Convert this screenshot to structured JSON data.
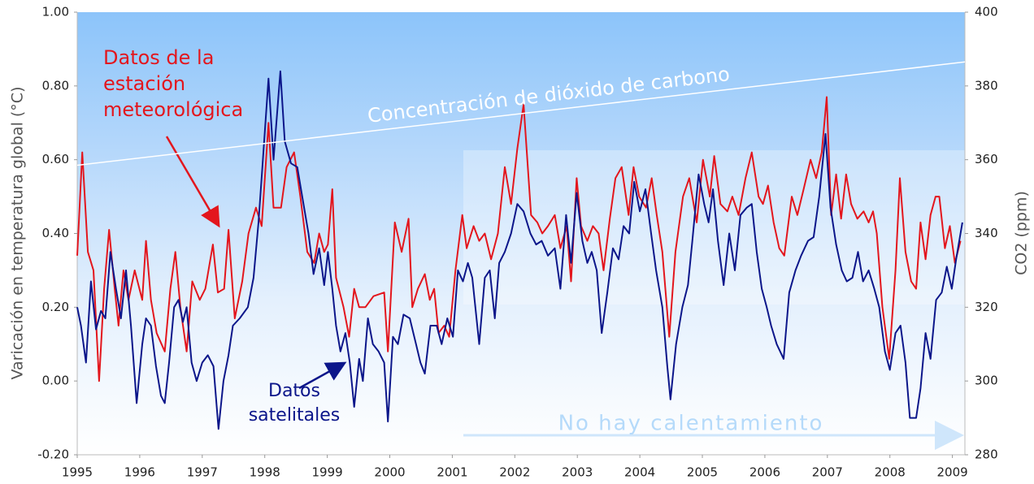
{
  "chart_data": {
    "type": "line",
    "xlim": [
      1995,
      2009.2
    ],
    "xticks": [
      1995,
      1996,
      1997,
      1998,
      1999,
      2000,
      2001,
      2002,
      2003,
      2004,
      2005,
      2006,
      2007,
      2008,
      2009
    ],
    "ylim": [
      -0.2,
      1.0
    ],
    "yticks": [
      {
        "value": -0.2,
        "label": "-0.20"
      },
      {
        "value": 0,
        "label": "0.00"
      },
      {
        "value": 0.2,
        "label": "0.20"
      },
      {
        "value": 0.4,
        "label": "0.40"
      },
      {
        "value": 0.6,
        "label": "0.60"
      },
      {
        "value": 0.8,
        "label": "0.80"
      },
      {
        "value": 1.0,
        "label": "1.00"
      }
    ],
    "y2lim": [
      280,
      400
    ],
    "y2ticks": [
      280,
      300,
      320,
      340,
      360,
      380,
      400
    ],
    "ylabel": "Varicación en temperatura global (°C)",
    "y2label": "CO2 (ppm)",
    "annotation": "No hay calentamiento",
    "series": [
      {
        "label_lines": [
          "Datos de la",
          "estación",
          "meteorológica"
        ],
        "color": "#e3161d",
        "x": [
          1995.0,
          1995.08,
          1995.17,
          1995.26,
          1995.35,
          1995.43,
          1995.51,
          1995.6,
          1995.66,
          1995.74,
          1995.82,
          1995.92,
          1996.04,
          1996.1,
          1996.18,
          1996.27,
          1996.4,
          1996.49,
          1996.57,
          1996.65,
          1996.75,
          1996.84,
          1996.96,
          1997.05,
          1997.17,
          1997.25,
          1997.35,
          1997.42,
          1997.52,
          1997.64,
          1997.74,
          1997.86,
          1997.95,
          1998.06,
          1998.14,
          1998.26,
          1998.35,
          1998.47,
          1998.57,
          1998.68,
          1998.79,
          1998.87,
          1998.95,
          1999.01,
          1999.08,
          1999.14,
          1999.26,
          1999.35,
          1999.43,
          1999.51,
          1999.61,
          1999.74,
          1999.91,
          1999.97,
          2000.08,
          2000.19,
          2000.3,
          2000.36,
          2000.45,
          2000.56,
          2000.64,
          2000.71,
          2000.78,
          2000.87,
          2000.95,
          2001.05,
          2001.16,
          2001.23,
          2001.34,
          2001.43,
          2001.52,
          2001.62,
          2001.73,
          2001.84,
          2001.94,
          2002.04,
          2002.14,
          2002.26,
          2002.36,
          2002.44,
          2002.53,
          2002.64,
          2002.73,
          2002.83,
          2002.9,
          2002.99,
          2003.06,
          2003.16,
          2003.25,
          2003.34,
          2003.42,
          2003.52,
          2003.61,
          2003.71,
          2003.82,
          2003.9,
          2003.99,
          2004.1,
          2004.19,
          2004.27,
          2004.36,
          2004.47,
          2004.57,
          2004.69,
          2004.79,
          2004.91,
          2005.01,
          2005.12,
          2005.19,
          2005.29,
          2005.4,
          2005.48,
          2005.58,
          2005.69,
          2005.79,
          2005.9,
          2005.97,
          2006.05,
          2006.14,
          2006.23,
          2006.31,
          2006.43,
          2006.52,
          2006.62,
          2006.73,
          2006.82,
          2006.91,
          2006.99,
          2007.06,
          2007.14,
          2007.22,
          2007.3,
          2007.38,
          2007.48,
          2007.58,
          2007.66,
          2007.73,
          2007.79,
          2007.88,
          2007.99,
          2008.09,
          2008.16,
          2008.25,
          2008.34,
          2008.42,
          2008.49,
          2008.57,
          2008.65,
          2008.73,
          2008.79,
          2008.88,
          2008.96,
          2009.04,
          2009.13
        ],
        "values": [
          0.34,
          0.62,
          0.35,
          0.3,
          0.0,
          0.25,
          0.41,
          0.25,
          0.15,
          0.3,
          0.22,
          0.3,
          0.22,
          0.38,
          0.22,
          0.13,
          0.08,
          0.25,
          0.35,
          0.2,
          0.08,
          0.27,
          0.22,
          0.25,
          0.37,
          0.24,
          0.25,
          0.41,
          0.17,
          0.27,
          0.4,
          0.47,
          0.42,
          0.7,
          0.47,
          0.47,
          0.58,
          0.62,
          0.5,
          0.35,
          0.32,
          0.4,
          0.35,
          0.37,
          0.52,
          0.28,
          0.2,
          0.12,
          0.25,
          0.2,
          0.2,
          0.23,
          0.24,
          0.08,
          0.43,
          0.35,
          0.44,
          0.2,
          0.25,
          0.29,
          0.22,
          0.25,
          0.13,
          0.15,
          0.12,
          0.3,
          0.45,
          0.36,
          0.42,
          0.38,
          0.4,
          0.33,
          0.4,
          0.58,
          0.48,
          0.63,
          0.75,
          0.45,
          0.43,
          0.4,
          0.42,
          0.45,
          0.36,
          0.42,
          0.27,
          0.55,
          0.42,
          0.38,
          0.42,
          0.4,
          0.3,
          0.44,
          0.55,
          0.58,
          0.45,
          0.58,
          0.5,
          0.47,
          0.55,
          0.45,
          0.35,
          0.12,
          0.35,
          0.5,
          0.55,
          0.43,
          0.6,
          0.5,
          0.61,
          0.48,
          0.46,
          0.5,
          0.45,
          0.55,
          0.62,
          0.5,
          0.48,
          0.53,
          0.43,
          0.36,
          0.34,
          0.5,
          0.45,
          0.52,
          0.6,
          0.55,
          0.62,
          0.77,
          0.45,
          0.56,
          0.44,
          0.56,
          0.48,
          0.44,
          0.46,
          0.43,
          0.46,
          0.4,
          0.2,
          0.06,
          0.3,
          0.55,
          0.35,
          0.27,
          0.25,
          0.43,
          0.33,
          0.45,
          0.5,
          0.5,
          0.36,
          0.42,
          0.32,
          0.38
        ]
      },
      {
        "label_lines": [
          "Datos",
          "satelitales"
        ],
        "color": "#0c168a",
        "x": [
          1995.0,
          1995.06,
          1995.14,
          1995.22,
          1995.3,
          1995.38,
          1995.45,
          1995.53,
          1995.62,
          1995.7,
          1995.78,
          1995.86,
          1995.95,
          1996.04,
          1996.1,
          1996.18,
          1996.26,
          1996.34,
          1996.4,
          1996.47,
          1996.55,
          1996.62,
          1996.69,
          1996.75,
          1996.83,
          1996.91,
          1997.0,
          1997.09,
          1997.18,
          1997.26,
          1997.34,
          1997.42,
          1997.49,
          1997.6,
          1997.73,
          1997.82,
          1997.9,
          1997.97,
          1998.06,
          1998.14,
          1998.25,
          1998.32,
          1998.42,
          1998.52,
          1998.6,
          1998.7,
          1998.78,
          1998.87,
          1998.95,
          1999.01,
          1999.08,
          1999.14,
          1999.21,
          1999.29,
          1999.36,
          1999.43,
          1999.51,
          1999.57,
          1999.65,
          1999.73,
          1999.82,
          1999.91,
          1999.97,
          2000.05,
          2000.13,
          2000.22,
          2000.32,
          2000.42,
          2000.49,
          2000.56,
          2000.65,
          2000.75,
          2000.83,
          2000.92,
          2001.01,
          2001.09,
          2001.17,
          2001.25,
          2001.32,
          2001.43,
          2001.52,
          2001.6,
          2001.68,
          2001.75,
          2001.84,
          2001.94,
          2002.04,
          2002.14,
          2002.25,
          2002.34,
          2002.43,
          2002.53,
          2002.64,
          2002.73,
          2002.82,
          2002.9,
          2002.99,
          2003.08,
          2003.16,
          2003.23,
          2003.31,
          2003.39,
          2003.48,
          2003.57,
          2003.66,
          2003.74,
          2003.83,
          2003.91,
          2004.0,
          2004.09,
          2004.18,
          2004.26,
          2004.36,
          2004.44,
          2004.49,
          2004.58,
          2004.68,
          2004.77,
          2004.84,
          2004.94,
          2005.03,
          2005.1,
          2005.17,
          2005.25,
          2005.34,
          2005.43,
          2005.52,
          2005.61,
          2005.71,
          2005.79,
          2005.87,
          2005.95,
          2006.03,
          2006.1,
          2006.19,
          2006.3,
          2006.39,
          2006.49,
          2006.58,
          2006.69,
          2006.78,
          2006.87,
          2006.97,
          2007.05,
          2007.14,
          2007.23,
          2007.31,
          2007.4,
          2007.49,
          2007.57,
          2007.66,
          2007.75,
          2007.83,
          2007.92,
          2008.0,
          2008.09,
          2008.17,
          2008.25,
          2008.32,
          2008.42,
          2008.49,
          2008.57,
          2008.65,
          2008.74,
          2008.83,
          2008.91,
          2008.99,
          2009.06,
          2009.16
        ],
        "values": [
          0.2,
          0.15,
          0.05,
          0.27,
          0.14,
          0.19,
          0.17,
          0.35,
          0.25,
          0.17,
          0.3,
          0.15,
          -0.06,
          0.1,
          0.17,
          0.15,
          0.04,
          -0.04,
          -0.06,
          0.05,
          0.2,
          0.22,
          0.16,
          0.2,
          0.05,
          0.0,
          0.05,
          0.07,
          0.04,
          -0.13,
          0.0,
          0.07,
          0.15,
          0.17,
          0.2,
          0.28,
          0.43,
          0.6,
          0.82,
          0.6,
          0.84,
          0.65,
          0.59,
          0.58,
          0.5,
          0.4,
          0.29,
          0.36,
          0.26,
          0.35,
          0.25,
          0.15,
          0.08,
          0.13,
          0.05,
          -0.07,
          0.06,
          0.0,
          0.17,
          0.1,
          0.08,
          0.05,
          -0.11,
          0.12,
          0.1,
          0.18,
          0.17,
          0.1,
          0.05,
          0.02,
          0.15,
          0.15,
          0.1,
          0.17,
          0.12,
          0.3,
          0.27,
          0.32,
          0.28,
          0.1,
          0.28,
          0.3,
          0.17,
          0.32,
          0.35,
          0.4,
          0.48,
          0.46,
          0.4,
          0.37,
          0.38,
          0.34,
          0.36,
          0.25,
          0.45,
          0.32,
          0.51,
          0.38,
          0.32,
          0.35,
          0.3,
          0.13,
          0.24,
          0.36,
          0.33,
          0.42,
          0.4,
          0.54,
          0.46,
          0.52,
          0.4,
          0.3,
          0.2,
          0.04,
          -0.05,
          0.1,
          0.2,
          0.26,
          0.38,
          0.56,
          0.48,
          0.43,
          0.52,
          0.38,
          0.26,
          0.4,
          0.3,
          0.45,
          0.47,
          0.48,
          0.35,
          0.25,
          0.2,
          0.15,
          0.1,
          0.06,
          0.24,
          0.3,
          0.34,
          0.38,
          0.39,
          0.5,
          0.67,
          0.47,
          0.37,
          0.3,
          0.27,
          0.28,
          0.35,
          0.27,
          0.3,
          0.25,
          0.2,
          0.08,
          0.03,
          0.13,
          0.15,
          0.05,
          -0.1,
          -0.1,
          -0.02,
          0.13,
          0.06,
          0.22,
          0.24,
          0.31,
          0.25,
          0.33,
          0.43
        ]
      },
      {
        "name": "Concentración de dióxido de carbono",
        "color": "#ffffff",
        "axis": "y2",
        "x": [
          1995,
          2009.2
        ],
        "values": [
          358.5,
          386.5
        ]
      }
    ]
  }
}
